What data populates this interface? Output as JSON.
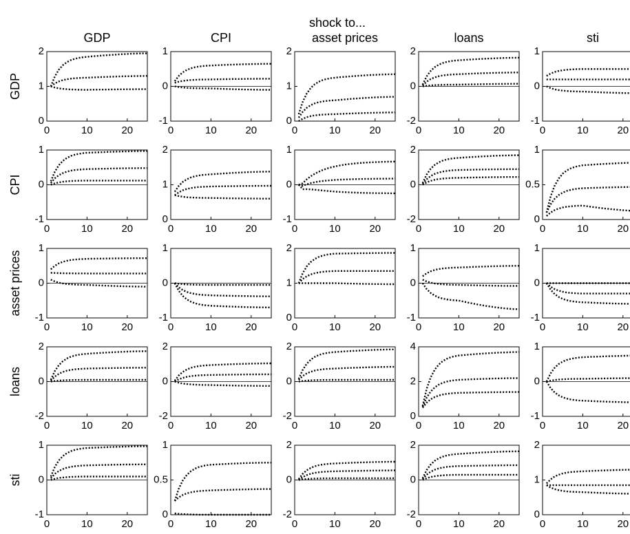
{
  "figure": {
    "supertitle": "shock to...",
    "column_titles": [
      "GDP",
      "CPI",
      "asset prices",
      "loans",
      "sti"
    ],
    "row_titles": [
      "GDP",
      "CPI",
      "asset prices",
      "loans",
      "sti"
    ]
  },
  "chart_data": {
    "type": "line",
    "description_of_layout": "5x5 grid of impulse response panels; rows = responding variable, columns = shocked variable; each panel shows median and two error bands (dotted) plus zero line",
    "x": [
      1,
      2,
      3,
      4,
      5,
      6,
      7,
      8,
      9,
      10,
      11,
      12,
      13,
      14,
      15,
      16,
      17,
      18,
      19,
      20,
      21,
      22,
      23,
      24,
      25
    ],
    "xlim": [
      0,
      25
    ],
    "xticks": [
      0,
      10,
      20
    ],
    "panels": [
      {
        "row": "GDP",
        "col": "GDP",
        "ylim": [
          0,
          2
        ],
        "yticks": [
          0,
          1,
          2
        ],
        "zero_line": false,
        "shape": "log",
        "lower": [
          1.0,
          0.9,
          0.92
        ],
        "median": [
          1.0,
          1.25,
          1.3
        ],
        "upper": [
          1.0,
          1.85,
          1.95
        ]
      },
      {
        "row": "GDP",
        "col": "CPI",
        "ylim": [
          -1,
          1
        ],
        "yticks": [
          -1,
          0,
          1
        ],
        "zero_line": true,
        "shape": "log",
        "lower": [
          0.0,
          -0.06,
          -0.1
        ],
        "median": [
          0.1,
          0.2,
          0.22
        ],
        "upper": [
          0.15,
          0.6,
          0.65
        ]
      },
      {
        "row": "GDP",
        "col": "asset prices",
        "ylim": [
          0,
          2
        ],
        "yticks": [
          0,
          1,
          2
        ],
        "zero_line": false,
        "shape": "log",
        "lower": [
          0.0,
          0.2,
          0.25
        ],
        "median": [
          0.1,
          0.6,
          0.7
        ],
        "upper": [
          0.2,
          1.25,
          1.35
        ]
      },
      {
        "row": "GDP",
        "col": "loans",
        "ylim": [
          -2,
          2
        ],
        "yticks": [
          -2,
          0,
          2
        ],
        "zero_line": true,
        "shape": "log",
        "lower": [
          0.0,
          0.1,
          0.15
        ],
        "median": [
          0.05,
          0.7,
          0.8
        ],
        "upper": [
          0.1,
          1.5,
          1.65
        ]
      },
      {
        "row": "GDP",
        "col": "sti",
        "ylim": [
          -1,
          1
        ],
        "yticks": [
          -1,
          0,
          1
        ],
        "zero_line": true,
        "shape": "log",
        "lower": [
          0.0,
          -0.15,
          -0.2
        ],
        "median": [
          0.2,
          0.2,
          0.2
        ],
        "upper": [
          0.3,
          0.5,
          0.5
        ]
      },
      {
        "row": "CPI",
        "col": "GDP",
        "ylim": [
          -1,
          1
        ],
        "yticks": [
          -1,
          0,
          1
        ],
        "zero_line": true,
        "shape": "log",
        "lower": [
          0.0,
          0.12,
          0.12
        ],
        "median": [
          0.05,
          0.45,
          0.48
        ],
        "upper": [
          0.1,
          0.92,
          0.97
        ]
      },
      {
        "row": "CPI",
        "col": "CPI",
        "ylim": [
          0,
          2
        ],
        "yticks": [
          0,
          1,
          2
        ],
        "zero_line": false,
        "shape": "log",
        "lower": [
          0.7,
          0.62,
          0.6
        ],
        "median": [
          0.7,
          0.95,
          0.97
        ],
        "upper": [
          0.8,
          1.3,
          1.38
        ]
      },
      {
        "row": "CPI",
        "col": "asset prices",
        "ylim": [
          -1,
          1
        ],
        "yticks": [
          -1,
          0,
          1
        ],
        "zero_line": true,
        "shape": "dip",
        "lower": [
          0.0,
          -0.3,
          -0.25
        ],
        "median": [
          0.0,
          0.15,
          0.18
        ],
        "upper": [
          0.0,
          0.62,
          0.68
        ]
      },
      {
        "row": "CPI",
        "col": "loans",
        "ylim": [
          -2,
          2
        ],
        "yticks": [
          -2,
          0,
          2
        ],
        "zero_line": true,
        "shape": "log",
        "lower": [
          0.0,
          0.4,
          0.45
        ],
        "median": [
          0.05,
          0.85,
          0.9
        ],
        "upper": [
          0.1,
          1.55,
          1.7
        ]
      },
      {
        "row": "CPI",
        "col": "sti",
        "ylim": [
          0,
          1
        ],
        "yticks": [
          0,
          0.5,
          1
        ],
        "zero_line": false,
        "shape": "log",
        "lower": [
          0.05,
          0.2,
          0.12
        ],
        "median": [
          0.1,
          0.45,
          0.47
        ],
        "upper": [
          0.1,
          0.78,
          0.82
        ]
      },
      {
        "row": "asset prices",
        "col": "GDP",
        "ylim": [
          -1,
          1
        ],
        "yticks": [
          -1,
          0,
          1
        ],
        "zero_line": true,
        "shape": "log",
        "lower": [
          0.1,
          -0.05,
          -0.1
        ],
        "median": [
          0.3,
          0.28,
          0.28
        ],
        "upper": [
          0.4,
          0.7,
          0.72
        ]
      },
      {
        "row": "asset prices",
        "col": "CPI",
        "ylim": [
          -1,
          1
        ],
        "yticks": [
          -1,
          0,
          1
        ],
        "zero_line": true,
        "shape": "log",
        "lower": [
          0.0,
          -0.65,
          -0.7
        ],
        "median": [
          0.0,
          -0.35,
          -0.38
        ],
        "upper": [
          0.0,
          -0.05,
          -0.05
        ]
      },
      {
        "row": "asset prices",
        "col": "asset prices",
        "ylim": [
          0,
          2
        ],
        "yticks": [
          0,
          1,
          2
        ],
        "zero_line": false,
        "shape": "log",
        "lower": [
          1.0,
          1.0,
          0.97
        ],
        "median": [
          1.0,
          1.35,
          1.35
        ],
        "upper": [
          1.0,
          1.85,
          1.87
        ]
      },
      {
        "row": "asset prices",
        "col": "loans",
        "ylim": [
          -1,
          1
        ],
        "yticks": [
          -1,
          0,
          1
        ],
        "zero_line": true,
        "shape": "log",
        "lower": [
          0.0,
          -0.5,
          -0.75
        ],
        "median": [
          0.1,
          -0.05,
          -0.08
        ],
        "upper": [
          0.2,
          0.45,
          0.5
        ]
      },
      {
        "row": "asset prices",
        "col": "sti",
        "ylim": [
          -1,
          1
        ],
        "yticks": [
          -1,
          0,
          1
        ],
        "zero_line": true,
        "shape": "log",
        "lower": [
          0.0,
          -0.55,
          -0.6
        ],
        "median": [
          0.0,
          -0.3,
          -0.3
        ],
        "upper": [
          0.0,
          0.0,
          0.0
        ]
      },
      {
        "row": "loans",
        "col": "GDP",
        "ylim": [
          -2,
          2
        ],
        "yticks": [
          -2,
          0,
          2
        ],
        "zero_line": true,
        "shape": "log",
        "lower": [
          0.0,
          0.1,
          0.1
        ],
        "median": [
          0.05,
          0.75,
          0.8
        ],
        "upper": [
          0.1,
          1.6,
          1.75
        ]
      },
      {
        "row": "loans",
        "col": "CPI",
        "ylim": [
          -2,
          2
        ],
        "yticks": [
          -2,
          0,
          2
        ],
        "zero_line": true,
        "shape": "log",
        "lower": [
          0.0,
          -0.2,
          -0.25
        ],
        "median": [
          0.0,
          0.38,
          0.42
        ],
        "upper": [
          0.05,
          0.95,
          1.05
        ]
      },
      {
        "row": "loans",
        "col": "asset prices",
        "ylim": [
          -2,
          2
        ],
        "yticks": [
          -2,
          0,
          2
        ],
        "zero_line": true,
        "shape": "log",
        "lower": [
          0.0,
          0.1,
          0.1
        ],
        "median": [
          0.1,
          0.75,
          0.85
        ],
        "upper": [
          0.15,
          1.7,
          1.85
        ]
      },
      {
        "row": "loans",
        "col": "loans",
        "ylim": [
          0,
          4
        ],
        "yticks": [
          0,
          2,
          4
        ],
        "zero_line": false,
        "shape": "log",
        "lower": [
          0.5,
          1.35,
          1.4
        ],
        "median": [
          0.55,
          2.1,
          2.2
        ],
        "upper": [
          0.6,
          3.5,
          3.7
        ]
      },
      {
        "row": "loans",
        "col": "sti",
        "ylim": [
          -1,
          1
        ],
        "yticks": [
          -1,
          0,
          1
        ],
        "zero_line": true,
        "shape": "log",
        "lower": [
          0.0,
          -0.55,
          -0.6
        ],
        "median": [
          0.0,
          0.08,
          0.1
        ],
        "upper": [
          0.0,
          0.7,
          0.75
        ]
      },
      {
        "row": "sti",
        "col": "GDP",
        "ylim": [
          -1,
          1
        ],
        "yticks": [
          -1,
          0,
          1
        ],
        "zero_line": true,
        "shape": "log",
        "lower": [
          0.0,
          0.1,
          0.1
        ],
        "median": [
          0.05,
          0.42,
          0.45
        ],
        "upper": [
          0.1,
          0.92,
          0.97
        ]
      },
      {
        "row": "sti",
        "col": "CPI",
        "ylim": [
          0,
          1
        ],
        "yticks": [
          0,
          0.5,
          1
        ],
        "zero_line": false,
        "shape": "log",
        "lower": [
          0.02,
          0.0,
          0.0
        ],
        "median": [
          0.2,
          0.35,
          0.37
        ],
        "upper": [
          0.2,
          0.72,
          0.75
        ]
      },
      {
        "row": "sti",
        "col": "asset prices",
        "ylim": [
          -2,
          2
        ],
        "yticks": [
          -2,
          0,
          2
        ],
        "zero_line": true,
        "shape": "log",
        "lower": [
          0.0,
          0.1,
          0.1
        ],
        "median": [
          0.0,
          0.5,
          0.55
        ],
        "upper": [
          0.05,
          0.95,
          1.05
        ]
      },
      {
        "row": "sti",
        "col": "loans",
        "ylim": [
          -2,
          2
        ],
        "yticks": [
          -2,
          0,
          2
        ],
        "zero_line": true,
        "shape": "log",
        "lower": [
          0.0,
          0.3,
          0.3
        ],
        "median": [
          0.05,
          0.8,
          0.85
        ],
        "upper": [
          0.1,
          1.5,
          1.65
        ]
      },
      {
        "row": "sti",
        "col": "sti",
        "ylim": [
          0,
          2
        ],
        "yticks": [
          0,
          1,
          2
        ],
        "zero_line": false,
        "shape": "log",
        "lower": [
          0.85,
          0.65,
          0.6
        ],
        "median": [
          0.85,
          0.85,
          0.85
        ],
        "upper": [
          0.9,
          1.25,
          1.3
        ]
      }
    ]
  }
}
